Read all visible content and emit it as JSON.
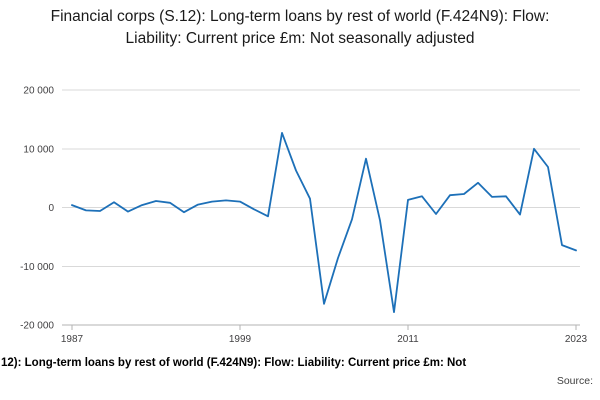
{
  "title": "Financial corps (S.12): Long-term loans by rest of world (F.424N9): Flow: Liability: Current price £m: Not seasonally adjusted",
  "footer_caption": "12): Long-term loans by rest of world (F.424N9): Flow: Liability: Current price £m: Not",
  "source_label": "Source:",
  "colors": {
    "line": "#1d70b8",
    "grid": "#d9d9d9",
    "axis": "#b3b3b3",
    "text": "#1a1a1a",
    "tick_text": "#414042"
  },
  "chart_data": {
    "type": "line",
    "title": "Financial corps (S.12): Long-term loans by rest of world (F.424N9): Flow: Liability: Current price £m: Not seasonally adjusted",
    "xlabel": "",
    "ylabel": "",
    "grid": true,
    "legend": false,
    "ylim": [
      -20000,
      20000
    ],
    "x": [
      1987,
      1988,
      1989,
      1990,
      1991,
      1992,
      1993,
      1994,
      1995,
      1996,
      1997,
      1998,
      1999,
      2000,
      2001,
      2002,
      2003,
      2004,
      2005,
      2006,
      2007,
      2008,
      2009,
      2010,
      2011,
      2012,
      2013,
      2014,
      2015,
      2016,
      2017,
      2018,
      2019,
      2020,
      2021,
      2022,
      2023
    ],
    "series": [
      {
        "name": "Long-term loans by rest of world (F.424N9): Flow: Liability: Current price £m",
        "values": [
          400,
          -500,
          -600,
          900,
          -700,
          400,
          1100,
          800,
          -800,
          500,
          1000,
          1200,
          1000,
          -300,
          -1500,
          12700,
          6300,
          1500,
          -16400,
          -8600,
          -2000,
          8300,
          -2200,
          -17800,
          1300,
          1900,
          -1100,
          2100,
          2300,
          4200,
          1800,
          1900,
          -1200,
          10000,
          6900,
          -6400,
          -7300
        ]
      }
    ],
    "yticks": [
      {
        "value": 20000,
        "label": "20 000"
      },
      {
        "value": 10000,
        "label": "10 000"
      },
      {
        "value": 0,
        "label": "0"
      },
      {
        "value": -10000,
        "label": "-10 000"
      },
      {
        "value": -20000,
        "label": "-20 000"
      }
    ],
    "xticks": [
      {
        "value": 1987,
        "label": "1987"
      },
      {
        "value": 1999,
        "label": "1999"
      },
      {
        "value": 2011,
        "label": "2011"
      },
      {
        "value": 2023,
        "label": "2023"
      }
    ]
  }
}
